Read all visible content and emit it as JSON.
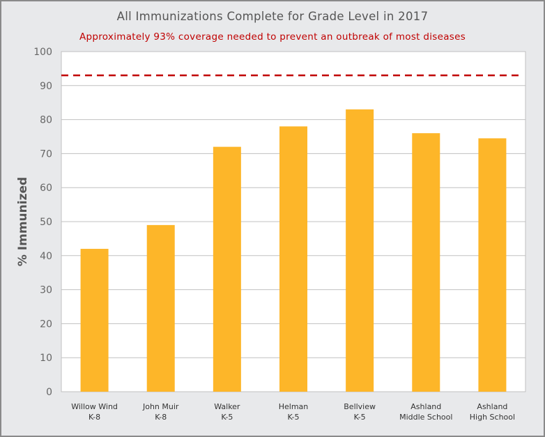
{
  "chart_data": {
    "type": "bar",
    "title": "All Immunizations Complete for Grade Level in 2017",
    "subtitle": "Approximately 93% coverage needed to prevent an outbreak of most diseases",
    "xlabel": "",
    "ylabel": "% Immunized",
    "ylim": [
      0,
      100
    ],
    "yticks": [
      0,
      10,
      20,
      30,
      40,
      50,
      60,
      70,
      80,
      90,
      100
    ],
    "grid": true,
    "categories": [
      [
        "Willow Wind",
        "K-8"
      ],
      [
        "John Muir",
        "K-8"
      ],
      [
        "Walker",
        "K-5"
      ],
      [
        "Helman",
        "K-5"
      ],
      [
        "Bellview",
        "K-5"
      ],
      [
        "Ashland",
        "Middle School"
      ],
      [
        "Ashland",
        "High School"
      ]
    ],
    "values": [
      42,
      49,
      72,
      78,
      83,
      76,
      74.5
    ],
    "reference_line": {
      "value": 93,
      "style": "dashed",
      "color": "#c00000"
    },
    "colors": {
      "bar": "#fdb629",
      "grid": "#c0c0c0",
      "background": "#e8e9eb",
      "plot": "#ffffff"
    }
  }
}
